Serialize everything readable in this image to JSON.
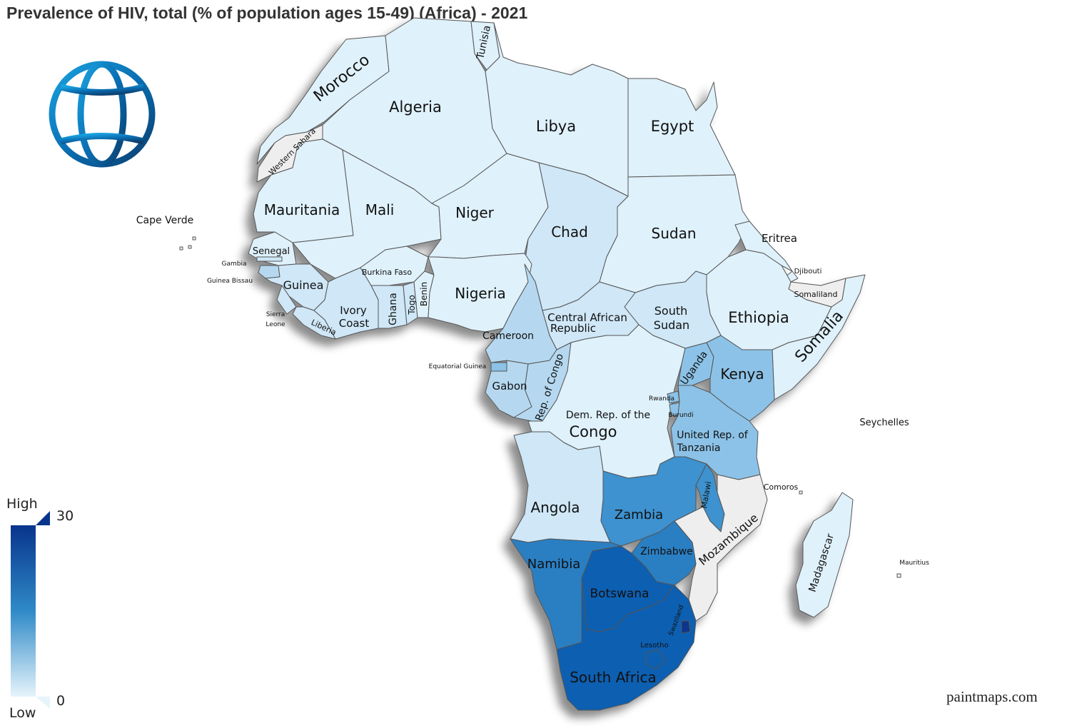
{
  "title": "Prevalence of HIV, total (% of population ages 15-49) (Africa) - 2021",
  "watermark": "paintmaps.com",
  "logo_icon": "world-bank-globe-icon",
  "legend": {
    "high_label": "High",
    "low_label": "Low",
    "max_value": "30",
    "min_value": "0",
    "color_low": "#e6f4fb",
    "color_high": "#08348c"
  },
  "colors": {
    "very_low": "#dff1fb",
    "low": "#cfe7f7",
    "low_mid": "#b5d8f0",
    "mid": "#8cc2e7",
    "mid_high": "#3d92cf",
    "high": "#2b7fc3",
    "very_high": "#0b5fb1",
    "no_data": "#eeeeee"
  },
  "countries": {
    "morocco": "Morocco",
    "western_sahara": "Western Sahara",
    "algeria": "Algeria",
    "tunisia": "Tunisia",
    "libya": "Libya",
    "egypt": "Egypt",
    "mauritania": "Mauritania",
    "mali": "Mali",
    "niger": "Niger",
    "chad": "Chad",
    "sudan": "Sudan",
    "eritrea": "Eritrea",
    "djibouti": "Djibouti",
    "somaliland": "Somaliland",
    "somalia": "Somalia",
    "ethiopia": "Ethiopia",
    "south_sudan_1": "South",
    "south_sudan_2": "Sudan",
    "car_1": "Central African",
    "car_2": "Republic",
    "nigeria": "Nigeria",
    "senegal": "Senegal",
    "gambia": "Gambia",
    "guinea_bissau": "Guinea Bissau",
    "guinea": "Guinea",
    "sierra_leone_1": "Sierra",
    "sierra_leone_2": "Leone",
    "liberia": "Liberia",
    "ivory_coast_1": "Ivory",
    "ivory_coast_2": "Coast",
    "burkina_faso": "Burkina Faso",
    "ghana": "Ghana",
    "togo": "Togo",
    "benin": "Benin",
    "cameroon": "Cameroon",
    "equatorial_guinea": "Equatorial Guinea",
    "gabon": "Gabon",
    "rep_congo": "Rep. of Congo",
    "drc_1": "Dem. Rep. of the",
    "drc_2": "Congo",
    "uganda": "Uganda",
    "kenya": "Kenya",
    "rwanda": "Rwanda",
    "burundi": "Burundi",
    "tanzania_1": "United Rep. of",
    "tanzania_2": "Tanzania",
    "angola": "Angola",
    "zambia": "Zambia",
    "malawi": "Malawi",
    "mozambique": "Mozambique",
    "zimbabwe": "Zimbabwe",
    "namibia": "Namibia",
    "botswana": "Botswana",
    "south_africa": "South Africa",
    "lesotho": "Lesotho",
    "swaziland": "Swaziland",
    "madagascar": "Madagascar",
    "comoros": "Comoros",
    "seychelles": "Seychelles",
    "mauritius": "Mauritius",
    "cape_verde": "Cape Verde"
  }
}
